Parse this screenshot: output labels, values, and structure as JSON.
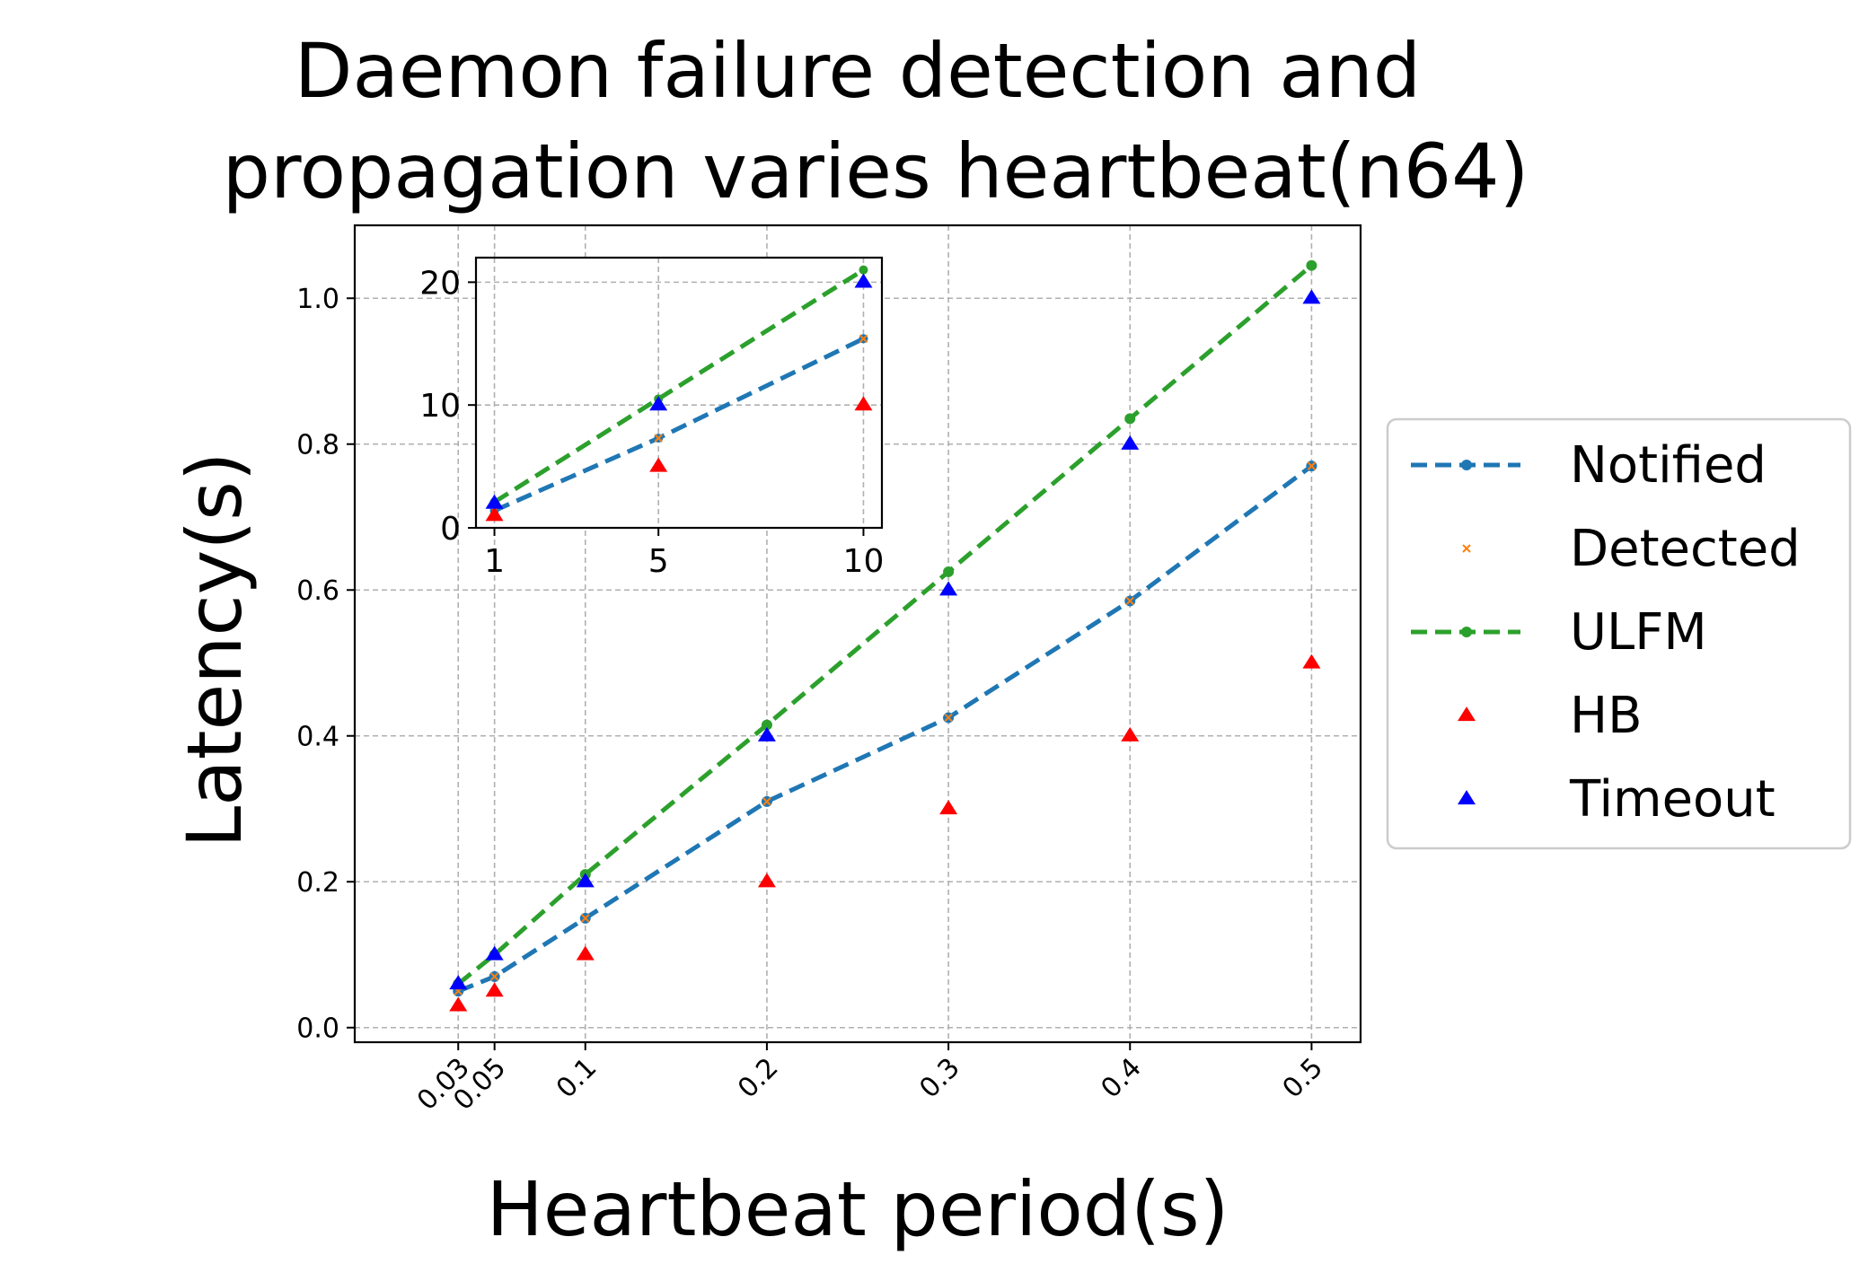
{
  "chart_data": [
    {
      "type": "line",
      "title_lines": [
        "Daemon failure detection and",
        "propagation varies heartbeat(n64)"
      ],
      "xlabel": "Heartbeat period(s)",
      "ylabel": "Latency(s)",
      "x": [
        0.03,
        0.05,
        0.1,
        0.2,
        0.3,
        0.4,
        0.5
      ],
      "xtick_labels": [
        "0.03",
        "0.05",
        "0.1",
        "0.2",
        "0.3",
        "0.4",
        "0.5"
      ],
      "yticks": [
        0.0,
        0.2,
        0.4,
        0.6,
        0.8,
        1.0
      ],
      "ytick_labels": [
        "0.0",
        "0.2",
        "0.4",
        "0.6",
        "0.8",
        "1.0"
      ],
      "xlim": [
        -0.027,
        0.527
      ],
      "ylim": [
        -0.02,
        1.1
      ],
      "grid": true,
      "legend_position": "outside-right",
      "series": [
        {
          "name": "Notified",
          "color": "#1f77b4",
          "style": "dashed-line",
          "marker": "dot",
          "values": [
            0.05,
            0.07,
            0.15,
            0.31,
            0.425,
            0.585,
            0.77
          ]
        },
        {
          "name": "Detected",
          "color": "#ff7f0e",
          "style": "marker-only",
          "marker": "x",
          "values": [
            0.05,
            0.07,
            0.15,
            0.31,
            0.425,
            0.585,
            0.77
          ]
        },
        {
          "name": "ULFM",
          "color": "#2ca02c",
          "style": "dashed-line",
          "marker": "dot",
          "values": [
            0.06,
            0.1,
            0.21,
            0.415,
            0.625,
            0.835,
            1.045
          ]
        },
        {
          "name": "HB",
          "color": "#ff0000",
          "style": "marker-only",
          "marker": "triangle",
          "values": [
            0.03,
            0.05,
            0.1,
            0.2,
            0.3,
            0.4,
            0.5
          ]
        },
        {
          "name": "Timeout",
          "color": "#0000ff",
          "style": "marker-only",
          "marker": "triangle",
          "values": [
            0.06,
            0.1,
            0.2,
            0.4,
            0.6,
            0.8,
            1.0
          ]
        }
      ]
    },
    {
      "type": "line",
      "role": "inset",
      "x": [
        1,
        5,
        10
      ],
      "xtick_labels": [
        "1",
        "5",
        "10"
      ],
      "yticks": [
        0,
        10,
        20
      ],
      "ytick_labels": [
        "0",
        "10",
        "20"
      ],
      "xlim": [
        0.55,
        10.45
      ],
      "ylim": [
        0,
        22
      ],
      "grid": true,
      "series": [
        {
          "name": "Notified",
          "color": "#1f77b4",
          "style": "dashed-line",
          "marker": "dot",
          "values": [
            1.4,
            7.3,
            15.4
          ]
        },
        {
          "name": "Detected",
          "color": "#ff7f0e",
          "style": "marker-only",
          "marker": "x",
          "values": [
            1.4,
            7.3,
            15.4
          ]
        },
        {
          "name": "ULFM",
          "color": "#2ca02c",
          "style": "dashed-line",
          "marker": "dot",
          "values": [
            2.1,
            10.5,
            21.0
          ]
        },
        {
          "name": "HB",
          "color": "#ff0000",
          "style": "marker-only",
          "marker": "triangle",
          "values": [
            1.0,
            5.0,
            10.0
          ]
        },
        {
          "name": "Timeout",
          "color": "#0000ff",
          "style": "marker-only",
          "marker": "triangle",
          "values": [
            2.0,
            10.0,
            20.0
          ]
        }
      ]
    }
  ]
}
